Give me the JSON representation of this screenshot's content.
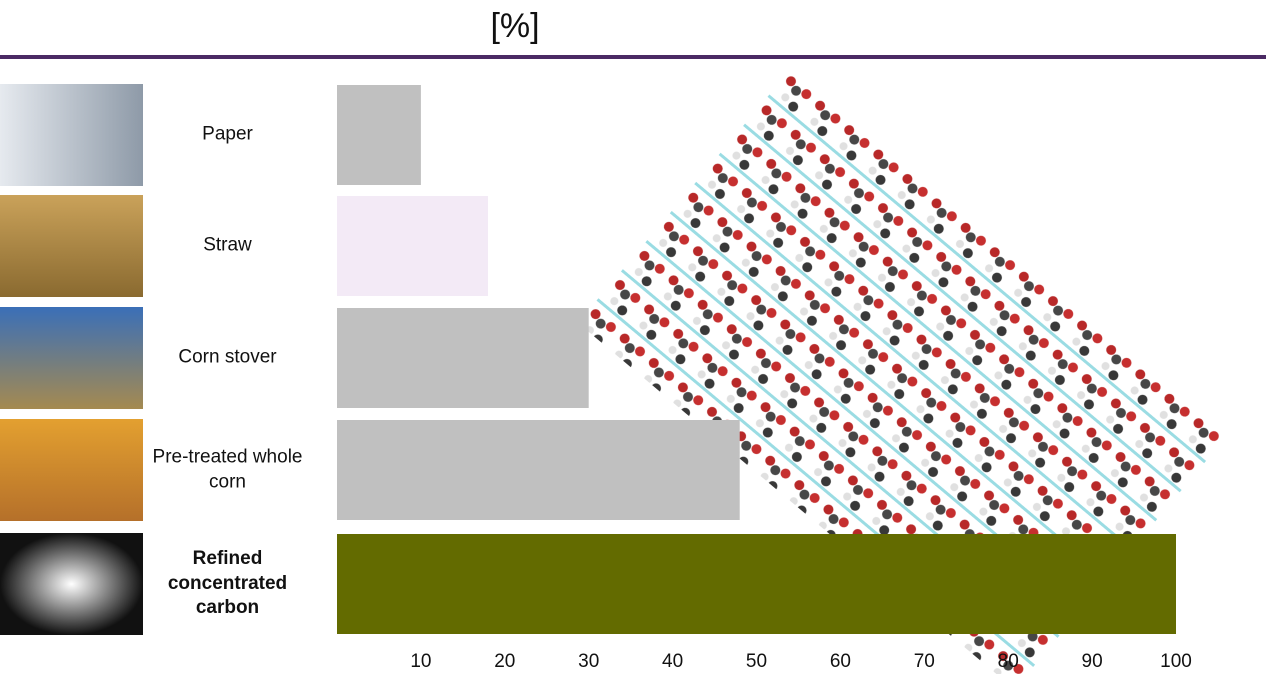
{
  "chart_data": {
    "type": "barh",
    "title": "[%]",
    "categories": [
      "Paper",
      "Straw",
      "Corn stover",
      "Pre-treated whole corn",
      "Refined concentrated carbon"
    ],
    "values": [
      10,
      18,
      30,
      48,
      100
    ],
    "colors": [
      "#c0c0c0",
      "#f3eaf6",
      "#c0c0c0",
      "#c0c0c0",
      "#636b00"
    ],
    "xlim": [
      0,
      100
    ],
    "xticks": [
      10,
      20,
      30,
      40,
      50,
      60,
      70,
      80,
      90,
      100
    ]
  }
}
